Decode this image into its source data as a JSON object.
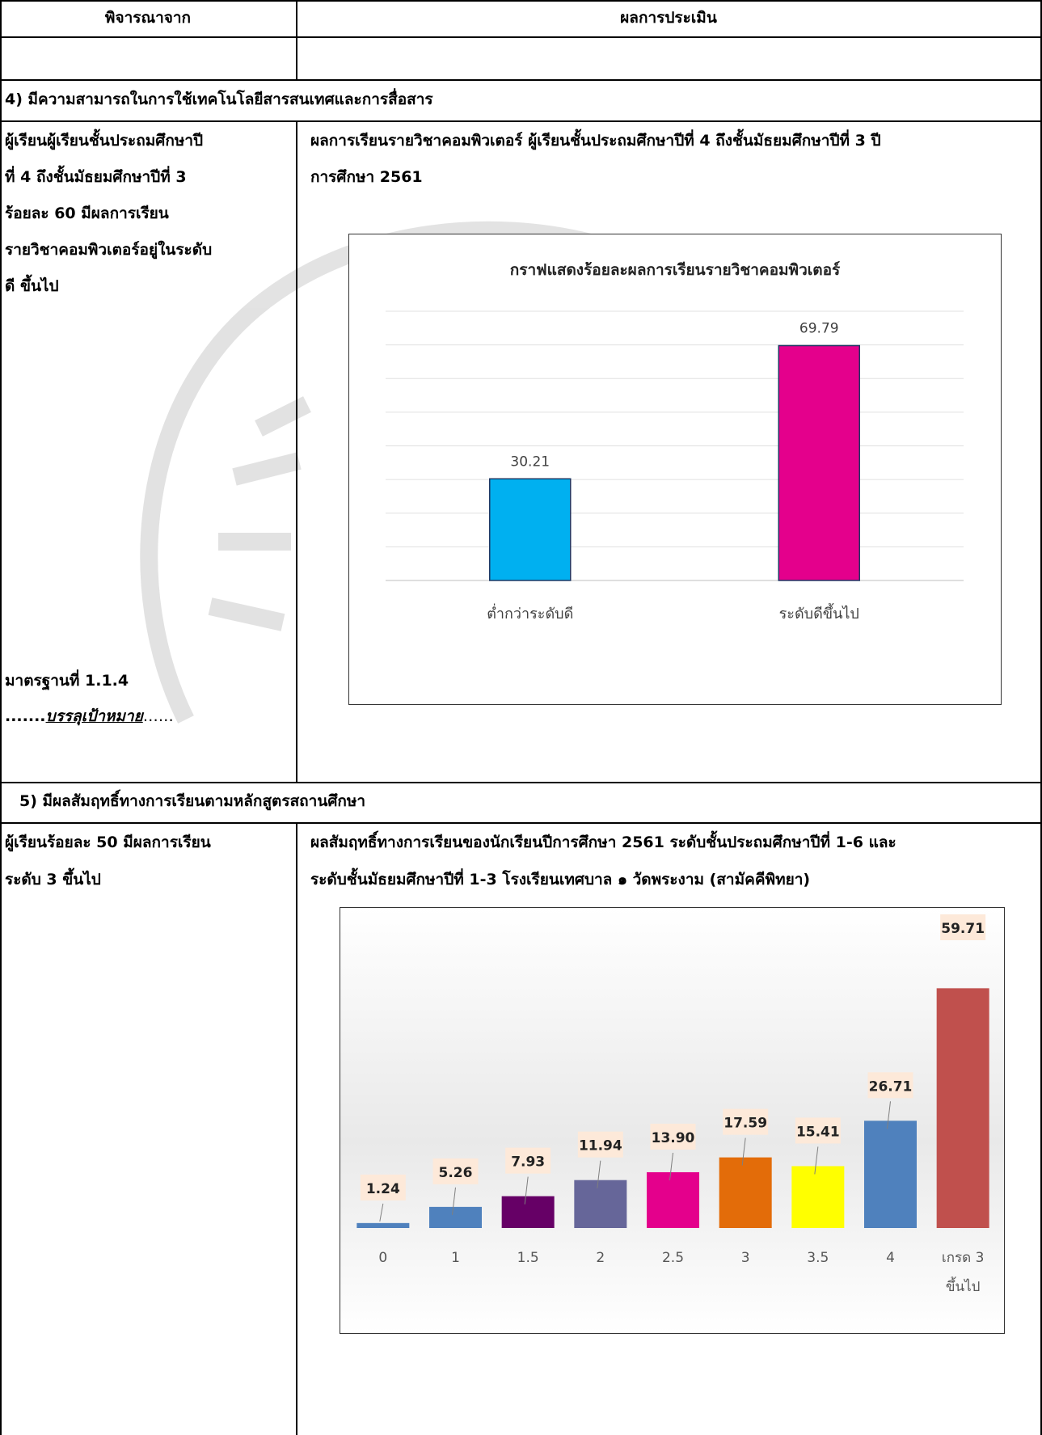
{
  "table": {
    "header": {
      "col1": "พิจารณาจาก",
      "col2": "ผลการประเมิน"
    },
    "section4": {
      "title": "4) มีความสามารถในการใช้เทคโนโลยีสารสนเทศและการสื่อสาร",
      "criteria_lines": [
        "ผู้เรียนผู้เรียนชั้นประถมศึกษาปี",
        "ที่ 4 ถึงชั้นมัธยมศึกษาปีที่ 3",
        "ร้อยละ 60 มีผลการเรียน",
        "รายวิชาคอมพิวเตอร์อยู่ในระดับ",
        "ดี ขึ้นไป"
      ],
      "standard": "มาตรฐานที่ 1.1.4",
      "status_prefix": ".......",
      "status_text": "บรรลุเป้าหมาย",
      "status_suffix": "……",
      "result_lines": [
        "ผลการเรียนรายวิชาคอมพิวเตอร์ ผู้เรียนชั้นประถมศึกษาปีที่ 4 ถึงชั้นมัธยมศึกษาปีที่ 3 ปี",
        "การศึกษา 2561"
      ]
    },
    "section5": {
      "title": "5)  มีผลสัมฤทธิ์ทางการเรียนตามหลักสูตรสถานศึกษา",
      "criteria_lines": [
        "ผู้เรียนร้อยละ 50 มีผลการเรียน",
        "ระดับ 3 ขึ้นไป"
      ],
      "result_lines": [
        "ผลสัมฤทธิ์ทางการเรียนของนักเรียนปีการศึกษา 2561 ระดับชั้นประถมศึกษาปีที่ 1-6 และ",
        "ระดับชั้นมัธยมศึกษาปีที่ 1-3 โรงเรียนเทศบาล ๑ วัดพระงาม (สามัคคีพิทยา)"
      ]
    }
  },
  "chart_data": [
    {
      "type": "bar",
      "title": "กราฟแสดงร้อยละผลการเรียนรายวิชาคอมพิวเตอร์",
      "categories": [
        "ต่ำกว่าระดับดี",
        "ระดับดีขึ้นไป"
      ],
      "values": [
        30.21,
        69.79
      ],
      "value_labels": [
        "30.21",
        "69.79"
      ],
      "colors": [
        "#00b0f0",
        "#e4008c"
      ],
      "ylim": [
        0,
        80
      ],
      "grid": true,
      "xlabel": "",
      "ylabel": ""
    },
    {
      "type": "bar",
      "title": "",
      "categories": [
        "0",
        "1",
        "1.5",
        "2",
        "2.5",
        "3",
        "3.5",
        "4",
        "เกรด 3 ขึ้นไป"
      ],
      "values": [
        1.24,
        5.26,
        7.93,
        11.94,
        13.9,
        17.59,
        15.41,
        26.71,
        59.71
      ],
      "value_labels": [
        "1.24",
        "5.26",
        "7.93",
        "11.94",
        "13.90",
        "17.59",
        "15.41",
        "26.71",
        "59.71"
      ],
      "colors": [
        "#4f81bd",
        "#4f81bd",
        "#660066",
        "#666699",
        "#e4008c",
        "#e36c09",
        "#ffff00",
        "#4f81bd",
        "#c0504d"
      ],
      "ylim": [
        0,
        62
      ],
      "grid": false,
      "xlabel": "",
      "ylabel": ""
    }
  ]
}
